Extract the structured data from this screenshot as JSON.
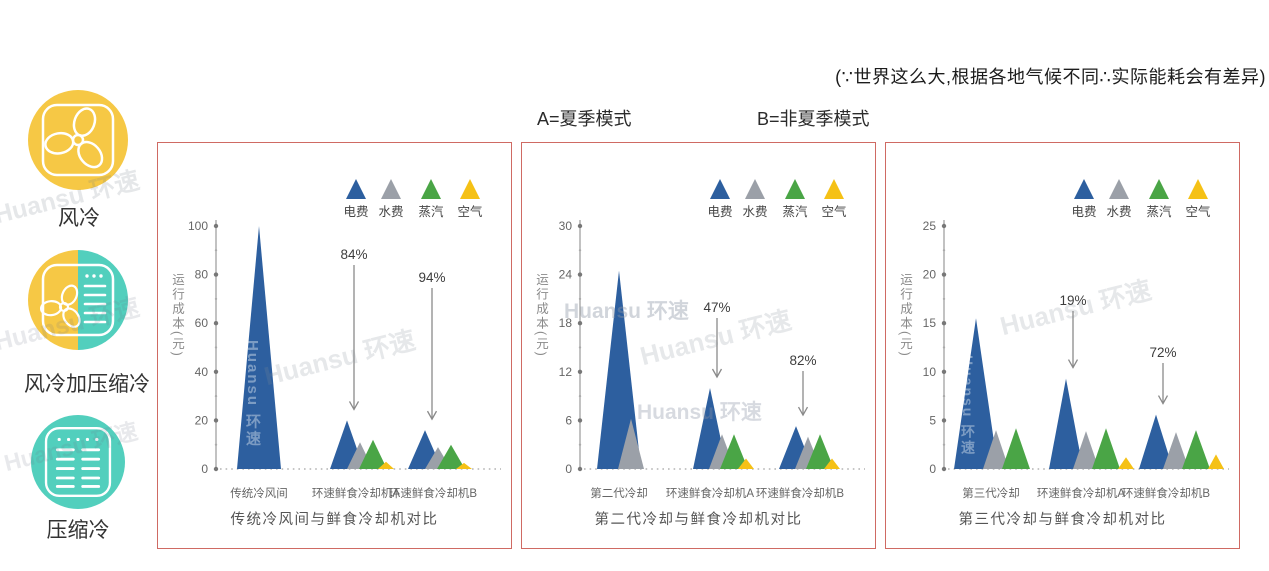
{
  "watermark": {
    "text": "Huansu 环速"
  },
  "header": {
    "note": "(∵世界这么大,根据各地气候不同∴实际能耗会有差异)",
    "mode_a": "A=夏季模式",
    "mode_b": "B=非夏季模式"
  },
  "sidebar": {
    "items": [
      {
        "label": "风冷",
        "icon": "fan-icon",
        "color": "#f6c845"
      },
      {
        "label": "风冷加压缩冷",
        "icon": "fan-compressor-icon",
        "color_left": "#f6c845",
        "color_right": "#52cfbd"
      },
      {
        "label": "压缩冷",
        "icon": "compressor-icon",
        "color": "#52cfbd"
      }
    ]
  },
  "legend": [
    {
      "label": "电费",
      "color": "#2d5f9f"
    },
    {
      "label": "水费",
      "color": "#9ba0a8"
    },
    {
      "label": "蒸汽",
      "color": "#4aa546"
    },
    {
      "label": "空气",
      "color": "#f5c116"
    }
  ],
  "panel_border_color": "#cf6a63",
  "chart_data": [
    {
      "type": "bar",
      "mark": "triangle-peak",
      "title": "传统冷风间与鲜食冷却机对比",
      "ylabel": "运行成本(元)",
      "ylim": [
        0,
        100
      ],
      "yticks": [
        0,
        20,
        40,
        60,
        80,
        100
      ],
      "categories": [
        "传统冷风间",
        "环速鲜食冷却机A",
        "环速鲜食冷却机B"
      ],
      "series": [
        {
          "name": "电费",
          "values": [
            100,
            20,
            16
          ]
        },
        {
          "name": "水费",
          "values": [
            0,
            11,
            9
          ]
        },
        {
          "name": "蒸汽",
          "values": [
            0,
            12,
            10
          ]
        },
        {
          "name": "空气",
          "values": [
            0,
            3,
            2.5
          ]
        }
      ],
      "annotations": [
        {
          "category_index": 1,
          "label": "84%"
        },
        {
          "category_index": 2,
          "label": "94%"
        }
      ],
      "legend_position": "top-right",
      "grid": false
    },
    {
      "type": "bar",
      "mark": "triangle-peak",
      "title": "第二代冷却与鲜食冷却机对比",
      "ylabel": "运行成本(元)",
      "ylim": [
        0,
        30
      ],
      "yticks": [
        0,
        6,
        12,
        18,
        24,
        30
      ],
      "categories": [
        "第二代冷却",
        "环速鲜食冷却机A",
        "环速鲜食冷却机B"
      ],
      "series": [
        {
          "name": "电费",
          "values": [
            24.5,
            10,
            5.3
          ]
        },
        {
          "name": "水费",
          "values": [
            6.2,
            4.3,
            4
          ]
        },
        {
          "name": "蒸汽",
          "values": [
            0,
            4.3,
            4.3
          ]
        },
        {
          "name": "空气",
          "values": [
            0,
            1.3,
            1.3
          ]
        }
      ],
      "annotations": [
        {
          "category_index": 1,
          "label": "47%"
        },
        {
          "category_index": 2,
          "label": "82%"
        }
      ],
      "legend_position": "top-right",
      "grid": false
    },
    {
      "type": "bar",
      "mark": "triangle-peak",
      "title": "第三代冷却与鲜食冷却机对比",
      "ylabel": "运行成本(元)",
      "ylim": [
        0,
        25
      ],
      "yticks": [
        0,
        5,
        10,
        15,
        20,
        25
      ],
      "categories": [
        "第三代冷却",
        "环速鲜食冷却机A",
        "环速鲜食冷却机B"
      ],
      "series": [
        {
          "name": "电费",
          "values": [
            15.5,
            9.3,
            5.6
          ]
        },
        {
          "name": "水费",
          "values": [
            4,
            3.9,
            3.8
          ]
        },
        {
          "name": "蒸汽",
          "values": [
            4.2,
            4.2,
            4
          ]
        },
        {
          "name": "空气",
          "values": [
            0,
            1.2,
            1.5
          ]
        }
      ],
      "annotations": [
        {
          "category_index": 1,
          "label": "19%"
        },
        {
          "category_index": 2,
          "label": "72%"
        }
      ],
      "legend_position": "top-right",
      "grid": false
    }
  ]
}
